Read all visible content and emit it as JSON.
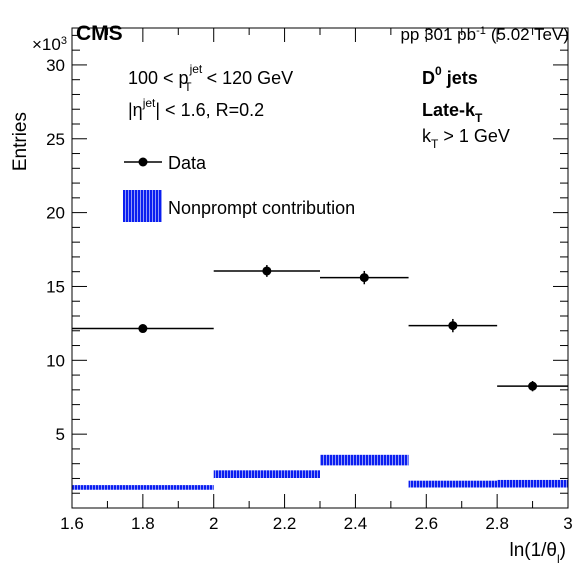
{
  "chart_data": {
    "type": "bar",
    "experiment": "CMS",
    "lumi": "pp 301 pb",
    "lumi_sup": "-1",
    "lumi_energy": "(5.02 TeV)",
    "ylabel": "Entries",
    "xlabel": "ln(1/θ",
    "xlabel_sub": "l",
    "xlabel_close": ")",
    "yscale_label": "×10",
    "yscale_exp": "3",
    "xlim": [
      1.6,
      3.0
    ],
    "ylim": [
      0,
      32.5
    ],
    "xticks": [
      "1.6",
      "1.8",
      "2",
      "2.2",
      "2.4",
      "2.6",
      "2.8",
      "3"
    ],
    "yticks": [
      "5",
      "10",
      "15",
      "20",
      "25",
      "30"
    ],
    "x_edges": [
      1.6,
      2.0,
      2.3,
      2.55,
      2.8,
      3.0
    ],
    "series": [
      {
        "name": "Data",
        "kind": "points",
        "values": [
          12.15,
          16.05,
          15.6,
          12.35,
          8.25
        ],
        "errors": [
          0.25,
          0.4,
          0.45,
          0.45,
          0.35
        ]
      },
      {
        "name": "Nonprompt contribution",
        "kind": "band",
        "low": [
          1.2,
          2.0,
          2.85,
          1.35,
          1.35
        ],
        "high": [
          1.55,
          2.55,
          3.6,
          1.85,
          1.9
        ],
        "color": "#0a1ef0"
      }
    ],
    "annotations": {
      "pt_text": "100 < p",
      "pt_sup": "jet",
      "pt_sub": "T",
      "pt_tail": " < 120 GeV",
      "eta_a": "|η",
      "eta_sup": "jet",
      "eta_b": "| < 1.6, R=0.2",
      "d0_text": "D",
      "d0_sup": "0",
      "d0_tail": " jets",
      "late_text": "Late-k",
      "late_sub": "T",
      "kt_text": "k",
      "kt_sub": "T",
      "kt_tail": " > 1 GeV"
    },
    "legend": {
      "entries": [
        "Data",
        "Nonprompt contribution"
      ],
      "placement": "top-left"
    }
  }
}
